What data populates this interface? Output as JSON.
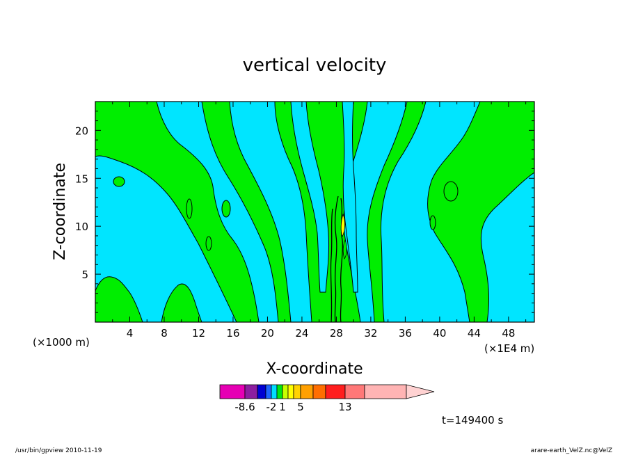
{
  "chart_data": {
    "type": "heatmap",
    "title": "vertical velocity",
    "xlabel": "X-coordinate",
    "ylabel": "Z-coordinate",
    "x_unit_left": "(×1000 m)",
    "x_unit_right": "(×1E4 m)",
    "x_ticks": [
      4,
      8,
      12,
      16,
      20,
      24,
      28,
      32,
      36,
      40,
      44,
      48
    ],
    "y_ticks": [
      5,
      10,
      15,
      20
    ],
    "xlim": [
      0,
      51
    ],
    "ylim": [
      0,
      23
    ],
    "grid": false,
    "time_label": "t=149400 s",
    "colorbar": {
      "tick_labels": [
        "-8.6",
        "-2",
        "1",
        "5",
        "13"
      ],
      "colors": [
        "#e600b4",
        "#8c1ea0",
        "#0000d2",
        "#1e64ff",
        "#00dcff",
        "#00e614",
        "#c8ff00",
        "#ffff00",
        "#ffd200",
        "#ffa000",
        "#ff6e00",
        "#ff1e1e",
        "#ff7878",
        "#ffb4b4",
        "#ffd2d2"
      ],
      "extend": "right"
    },
    "field_colors": {
      "negative": "#00e5ff",
      "positive": "#00ee00",
      "contour": "#000000"
    }
  },
  "footer": {
    "left": "/usr/bin/gpview   2010-11-19",
    "right": "arare-earth_VelZ.nc@VelZ"
  }
}
